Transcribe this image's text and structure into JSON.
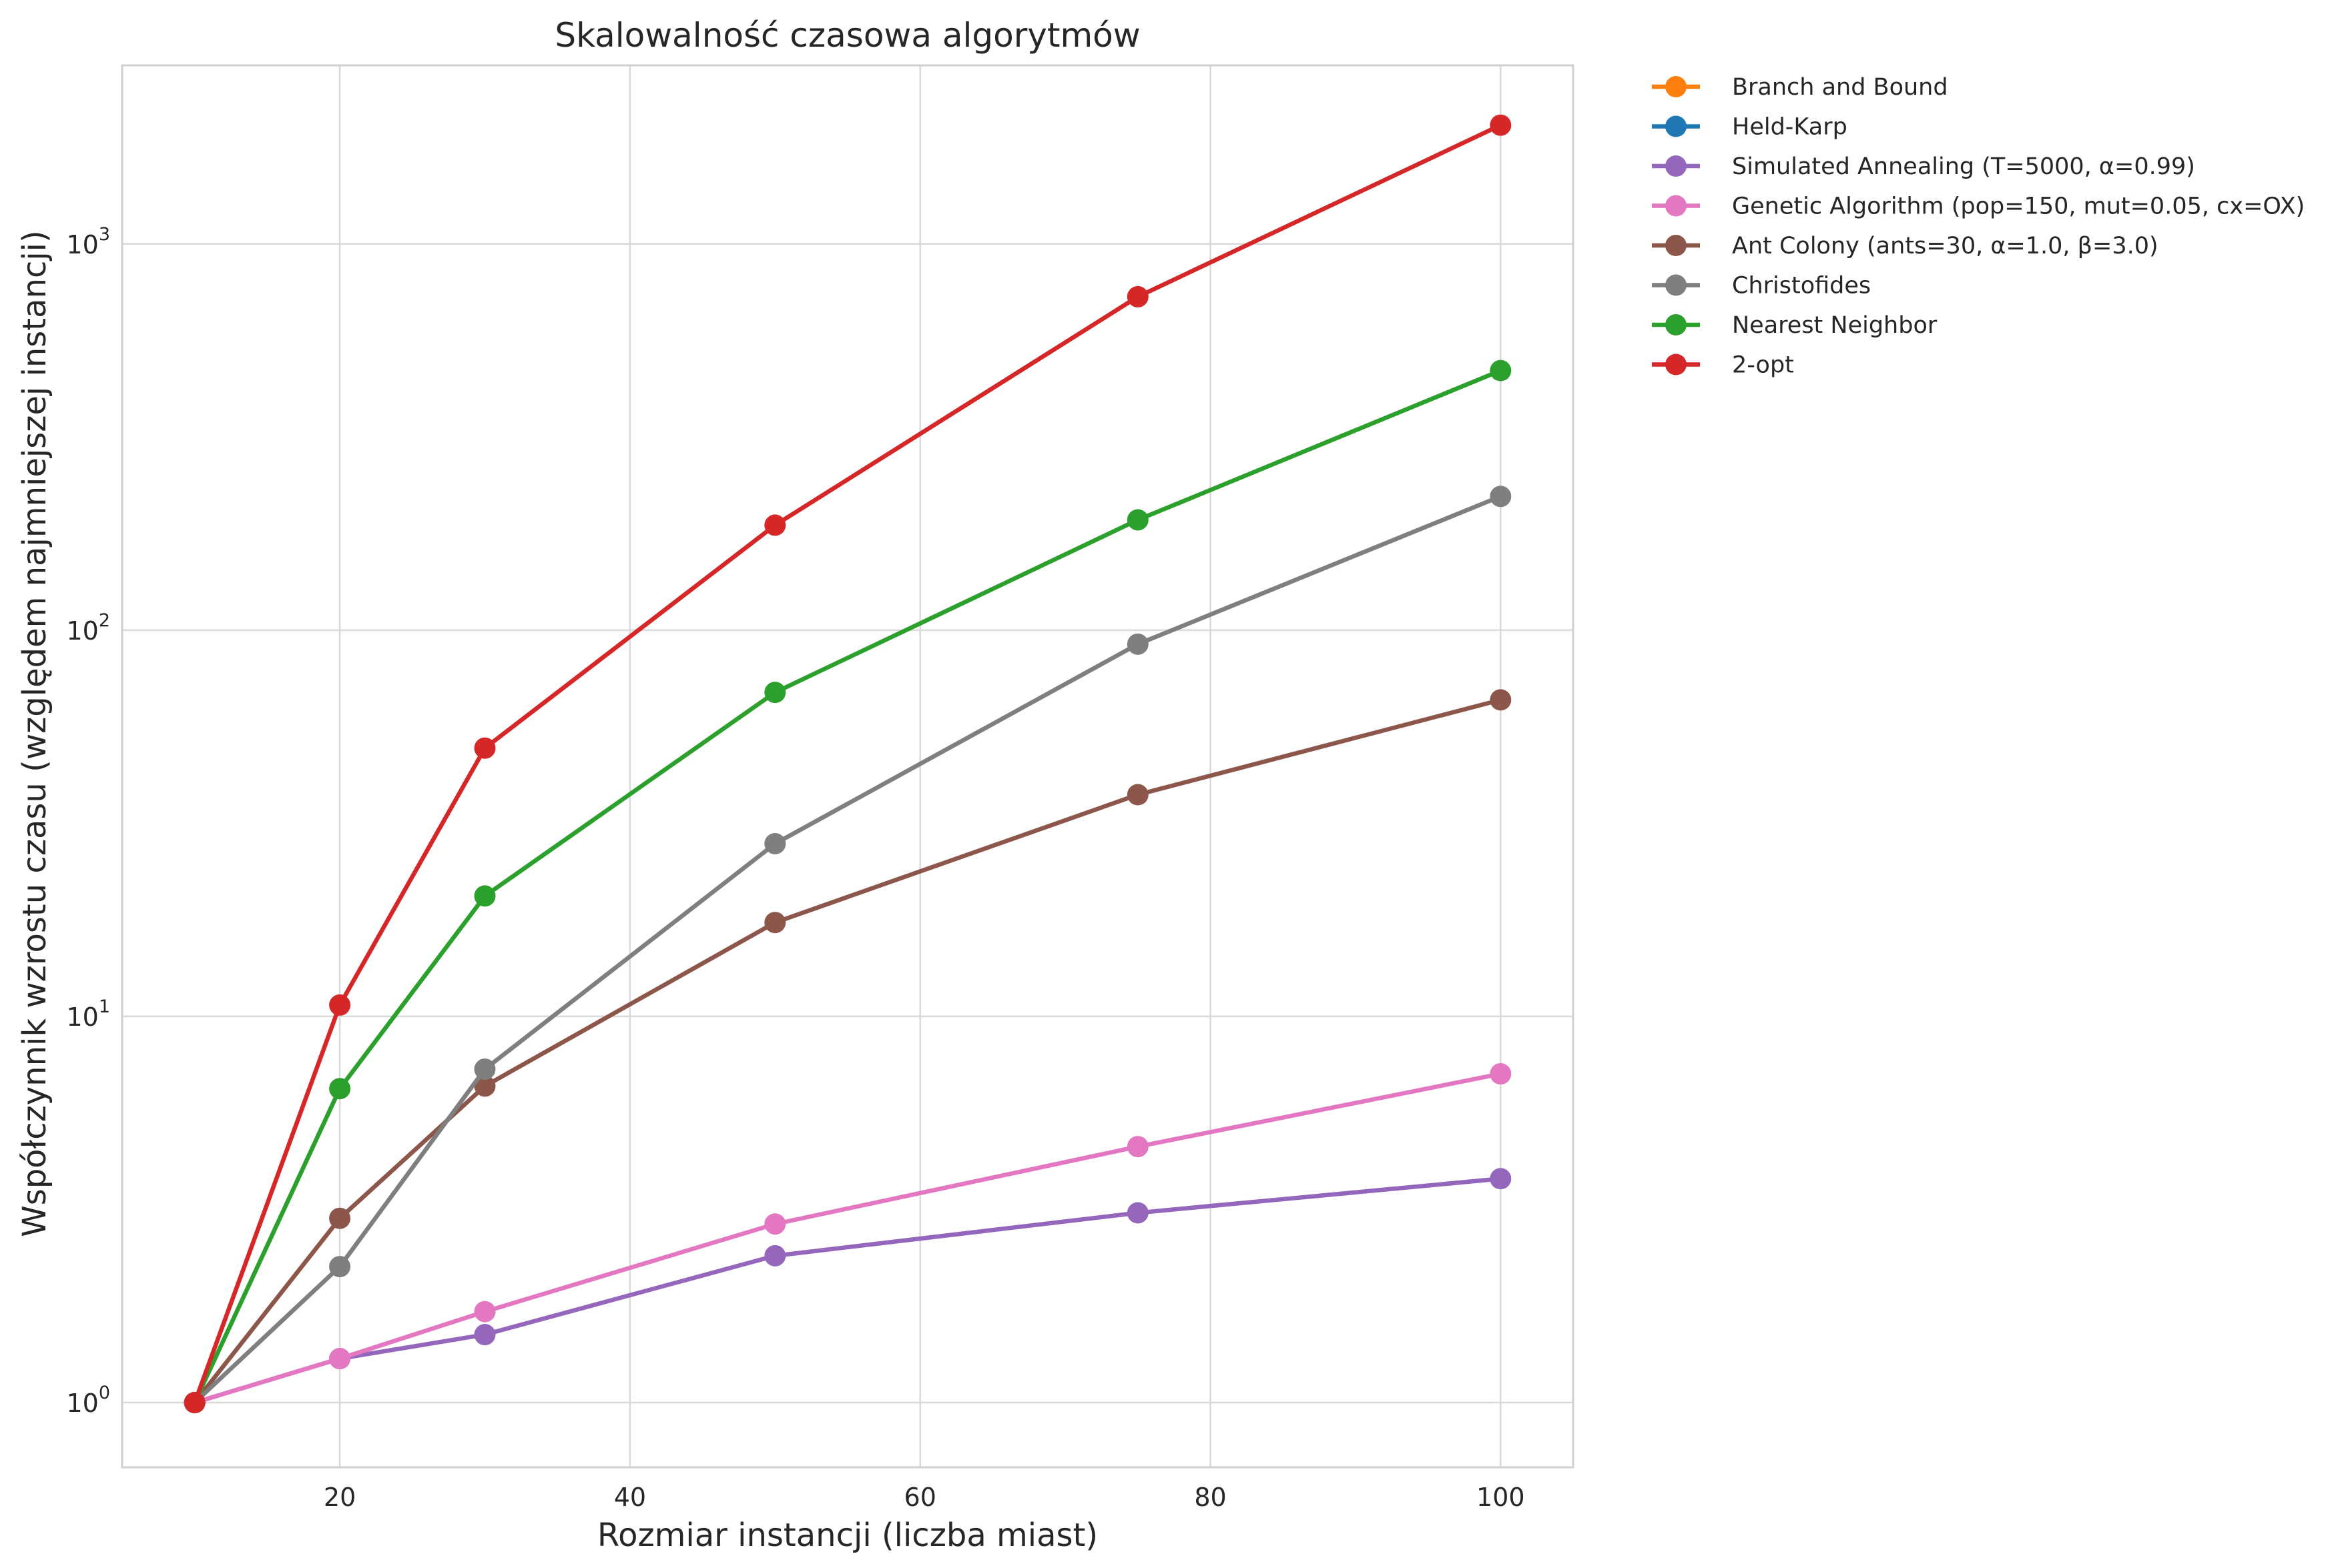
{
  "chart_data": {
    "type": "line",
    "title": "Skalowalność czasowa algorytmów",
    "xlabel": "Rozmiar instancji (liczba miast)",
    "ylabel": "Współczynnik wzrostu czasu (względem najmniejszej instancji)",
    "x_scale": "linear",
    "y_scale": "log",
    "xlim": [
      5,
      105
    ],
    "ylim": [
      0.68,
      2900
    ],
    "x_ticks": [
      20,
      40,
      60,
      80,
      100
    ],
    "y_ticks": [
      {
        "value": 1,
        "base": "10",
        "exp": "0"
      },
      {
        "value": 10,
        "base": "10",
        "exp": "1"
      },
      {
        "value": 100,
        "base": "10",
        "exp": "2"
      },
      {
        "value": 1000,
        "base": "10",
        "exp": "3"
      }
    ],
    "grid": true,
    "legend_position": "outside-top-right",
    "x": [
      10,
      20,
      30,
      50,
      75,
      100
    ],
    "series": [
      {
        "name": "Branch and Bound",
        "color": "#ff7f0e",
        "x": [
          10
        ],
        "values": [
          1.0
        ]
      },
      {
        "name": "Held-Karp",
        "color": "#1f77b4",
        "x": [
          10
        ],
        "values": [
          1.0
        ]
      },
      {
        "name": "Simulated Annealing (T=5000, α=0.99)",
        "color": "#9467bd",
        "x": [
          10,
          20,
          30,
          50,
          75,
          100
        ],
        "values": [
          1.0,
          1.3,
          1.5,
          2.4,
          3.1,
          3.8
        ]
      },
      {
        "name": "Genetic Algorithm (pop=150, mut=0.05, cx=OX)",
        "color": "#e377c2",
        "x": [
          10,
          20,
          30,
          50,
          75,
          100
        ],
        "values": [
          1.0,
          1.3,
          1.72,
          2.9,
          4.6,
          7.1
        ]
      },
      {
        "name": "Ant Colony (ants=30, α=1.0, β=3.0)",
        "color": "#8c564b",
        "x": [
          10,
          20,
          30,
          50,
          75,
          100
        ],
        "values": [
          1.0,
          3.0,
          6.6,
          17.5,
          37.5,
          66
        ]
      },
      {
        "name": "Christofides",
        "color": "#7f7f7f",
        "x": [
          10,
          20,
          30,
          50,
          75,
          100
        ],
        "values": [
          1.0,
          2.25,
          7.3,
          28,
          92,
          222
        ]
      },
      {
        "name": "Nearest Neighbor",
        "color": "#2ca02c",
        "x": [
          10,
          20,
          30,
          50,
          75,
          100
        ],
        "values": [
          1.0,
          6.5,
          20.5,
          69,
          193,
          470
        ]
      },
      {
        "name": "2-opt",
        "color": "#d62728",
        "x": [
          10,
          20,
          30,
          50,
          75,
          100
        ],
        "values": [
          1.0,
          10.7,
          49.5,
          187,
          730,
          2030
        ]
      }
    ]
  }
}
